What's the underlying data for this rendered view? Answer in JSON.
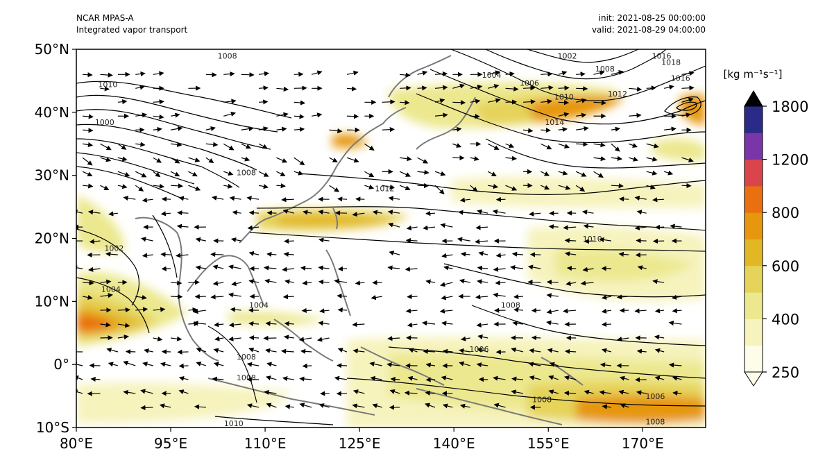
{
  "header": {
    "model": "NCAR MPAS-A",
    "field": "Integrated vapor transport",
    "init": "init: 2021-08-25 00:00:00",
    "valid": "valid: 2021-08-29 04:00:00"
  },
  "map": {
    "lon_range": [
      80,
      180
    ],
    "lat_range": [
      -10,
      50
    ],
    "lon_ticks": [
      {
        "value": 80,
        "label": "80°E"
      },
      {
        "value": 95,
        "label": "95°E"
      },
      {
        "value": 110,
        "label": "110°E"
      },
      {
        "value": 125,
        "label": "125°E"
      },
      {
        "value": 140,
        "label": "140°E"
      },
      {
        "value": 155,
        "label": "155°E"
      },
      {
        "value": 170,
        "label": "170°E"
      }
    ],
    "lat_ticks": [
      {
        "value": 50,
        "label": "50°N"
      },
      {
        "value": 40,
        "label": "40°N"
      },
      {
        "value": 30,
        "label": "30°N"
      },
      {
        "value": 20,
        "label": "20°N"
      },
      {
        "value": 10,
        "label": "10°N"
      },
      {
        "value": 0,
        "label": "0°"
      },
      {
        "value": -10,
        "label": "10°S"
      }
    ],
    "isobar_labels": [
      {
        "text": "1008",
        "lon": 104,
        "lat": 48.5
      },
      {
        "text": "1004",
        "lon": 146,
        "lat": 45.5
      },
      {
        "text": "1006",
        "lon": 152,
        "lat": 44.2
      },
      {
        "text": "1002",
        "lon": 158,
        "lat": 48.5
      },
      {
        "text": "1008",
        "lon": 164,
        "lat": 46.5
      },
      {
        "text": "1010",
        "lon": 157.5,
        "lat": 42
      },
      {
        "text": "1012",
        "lon": 166,
        "lat": 42.5
      },
      {
        "text": "1014",
        "lon": 156,
        "lat": 38
      },
      {
        "text": "1016",
        "lon": 176,
        "lat": 45
      },
      {
        "text": "1016",
        "lon": 173,
        "lat": 48.5
      },
      {
        "text": "1018",
        "lon": 174.5,
        "lat": 47.5
      },
      {
        "text": "1012",
        "lon": 129,
        "lat": 27.5
      },
      {
        "text": "1010",
        "lon": 162,
        "lat": 19.5
      },
      {
        "text": "1008",
        "lon": 149,
        "lat": 9
      },
      {
        "text": "1006",
        "lon": 144,
        "lat": 2
      },
      {
        "text": "1006",
        "lon": 172,
        "lat": -5.5
      },
      {
        "text": "1008",
        "lon": 172,
        "lat": -9.5
      },
      {
        "text": "1008",
        "lon": 154,
        "lat": -6
      },
      {
        "text": "1010",
        "lon": 105,
        "lat": -9.8
      },
      {
        "text": "1008",
        "lon": 107,
        "lat": 0.8
      },
      {
        "text": "1008",
        "lon": 107,
        "lat": -2.5
      },
      {
        "text": "1002",
        "lon": 86,
        "lat": 18
      },
      {
        "text": "1004",
        "lon": 85.5,
        "lat": 11.5
      },
      {
        "text": "1000",
        "lon": 84.5,
        "lat": 38
      },
      {
        "text": "1010",
        "lon": 85,
        "lat": 44
      },
      {
        "text": "1008",
        "lon": 107,
        "lat": 30
      },
      {
        "text": "1004",
        "lon": 109,
        "lat": 9
      }
    ]
  },
  "colorbar": {
    "unit_label": "[kg m⁻¹s⁻¹]",
    "levels": [
      250,
      300,
      400,
      500,
      600,
      700,
      800,
      1000,
      1200,
      1500,
      1800
    ],
    "colors": [
      "#fdfdea",
      "#f6f3bd",
      "#ece88f",
      "#e5d35a",
      "#e2b725",
      "#e6970d",
      "#ea700f",
      "#d9454b",
      "#7a35a8",
      "#2a2a88"
    ],
    "ticks": [
      {
        "value": 250,
        "label": "250"
      },
      {
        "value": 400,
        "label": "400"
      },
      {
        "value": 600,
        "label": "600"
      },
      {
        "value": 800,
        "label": "800"
      },
      {
        "value": 1200,
        "label": "1200"
      },
      {
        "value": 1800,
        "label": "1800"
      }
    ],
    "extend": "both",
    "max_extension_color": "#000000"
  }
}
